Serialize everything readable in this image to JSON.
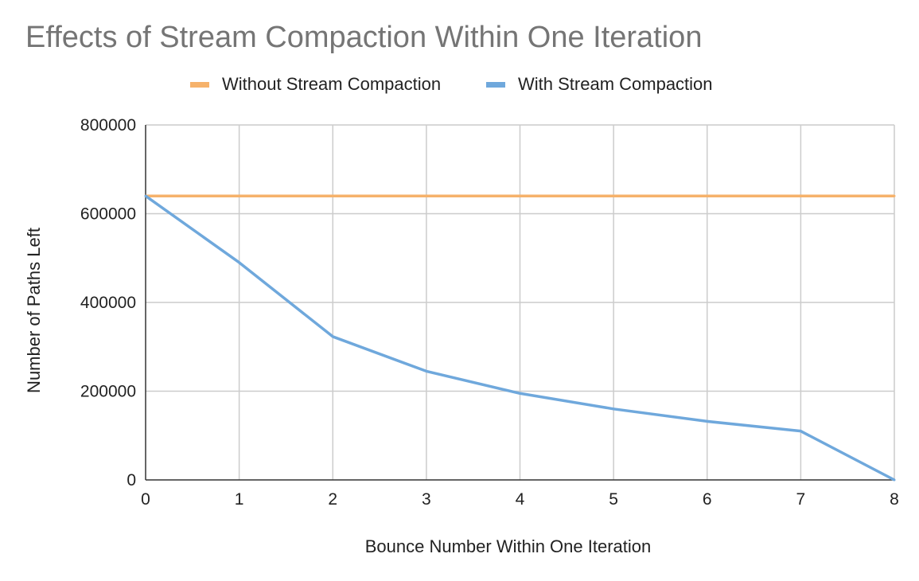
{
  "title": "Effects of Stream Compaction Within One Iteration",
  "chart_data": {
    "type": "line",
    "title": "Effects of Stream Compaction Within One Iteration",
    "xlabel": "Bounce Number Within One Iteration",
    "ylabel": "Number of Paths Left",
    "x": [
      0,
      1,
      2,
      3,
      4,
      5,
      6,
      7,
      8
    ],
    "xlim": [
      0,
      8
    ],
    "ylim": [
      0,
      800000
    ],
    "yticks": [
      "0",
      "200000",
      "400000",
      "600000",
      "800000"
    ],
    "xticks": [
      "0",
      "1",
      "2",
      "3",
      "4",
      "5",
      "6",
      "7",
      "8"
    ],
    "grid": true,
    "legend_position": "top",
    "series": [
      {
        "name": "Without Stream Compaction",
        "color": "#f6b26b",
        "values": [
          640000,
          640000,
          640000,
          640000,
          640000,
          640000,
          640000,
          640000,
          640000
        ]
      },
      {
        "name": "With Stream Compaction",
        "color": "#6fa8dc",
        "values": [
          640000,
          490000,
          323000,
          245000,
          195000,
          160000,
          132000,
          110000,
          0
        ]
      }
    ]
  }
}
